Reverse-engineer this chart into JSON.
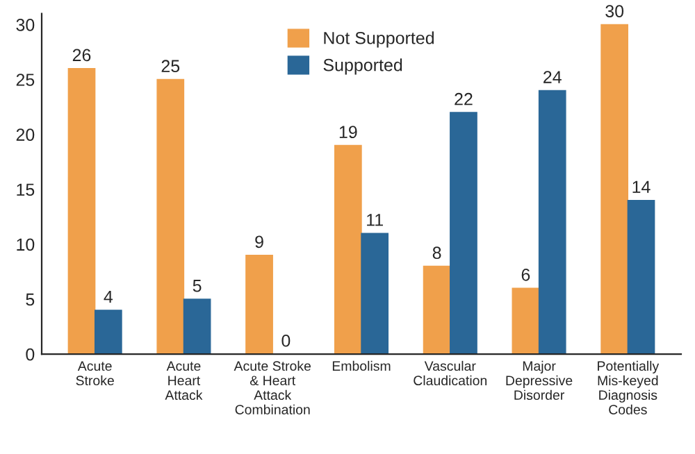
{
  "chart_data": {
    "type": "bar",
    "categories": [
      "Acute\nStroke",
      "Acute\nHeart\nAttack",
      "Acute Stroke\n& Heart\nAttack\nCombination",
      "Embolism",
      "Vascular\nClaudication",
      "Major\nDepressive\nDisorder",
      "Potentially\nMis-keyed\nDiagnosis\nCodes"
    ],
    "series": [
      {
        "name": "Not Supported",
        "color": "#f0a04b",
        "values": [
          26,
          25,
          9,
          19,
          8,
          6,
          30
        ]
      },
      {
        "name": "Supported",
        "color": "#2a6797",
        "values": [
          4,
          5,
          0,
          11,
          22,
          24,
          14
        ]
      }
    ],
    "ylim": [
      0,
      31
    ],
    "yticks": [
      0,
      5,
      10,
      15,
      20,
      25,
      30
    ],
    "data_labels": true,
    "legend": "top",
    "grid": false
  }
}
